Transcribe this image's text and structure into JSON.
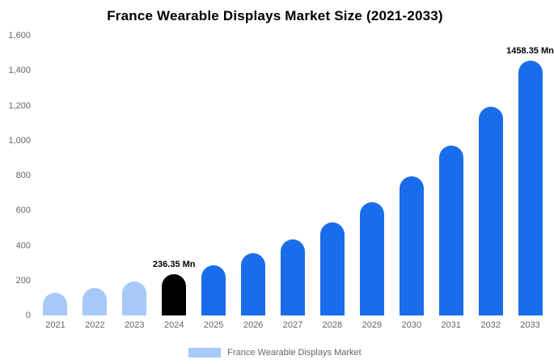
{
  "chart_data": {
    "type": "bar",
    "title": "France Wearable Displays Market Size (2021-2033)",
    "categories": [
      "2021",
      "2022",
      "2023",
      "2024",
      "2025",
      "2026",
      "2027",
      "2028",
      "2029",
      "2030",
      "2031",
      "2032",
      "2033"
    ],
    "values": [
      129,
      158,
      193,
      236.35,
      289,
      354,
      433,
      531,
      649,
      795,
      973,
      1191,
      1458.35
    ],
    "unit": "Mn",
    "xlabel": "",
    "ylabel": "",
    "ylim": [
      0,
      1600
    ],
    "y_ticks": [
      "0",
      "200",
      "400",
      "600",
      "800",
      "1,000",
      "1,200",
      "1,400",
      "1,600"
    ],
    "grid": false,
    "bar_colors": [
      "#a6c9f7",
      "#a6c9f7",
      "#a6c9f7",
      "#000000",
      "#1a6dea",
      "#1a6dea",
      "#1a6dea",
      "#1a6dea",
      "#1a6dea",
      "#1a6dea",
      "#1a6dea",
      "#1a6dea",
      "#1a6dea"
    ],
    "annotations": [
      {
        "category": "2024",
        "text": "236.35 Mn"
      },
      {
        "category": "2033",
        "text": "1458.35 Mn"
      }
    ],
    "legend": {
      "position": "bottom",
      "label": "France Wearable Displays Market",
      "swatch_color": "#a6c9f7"
    }
  }
}
